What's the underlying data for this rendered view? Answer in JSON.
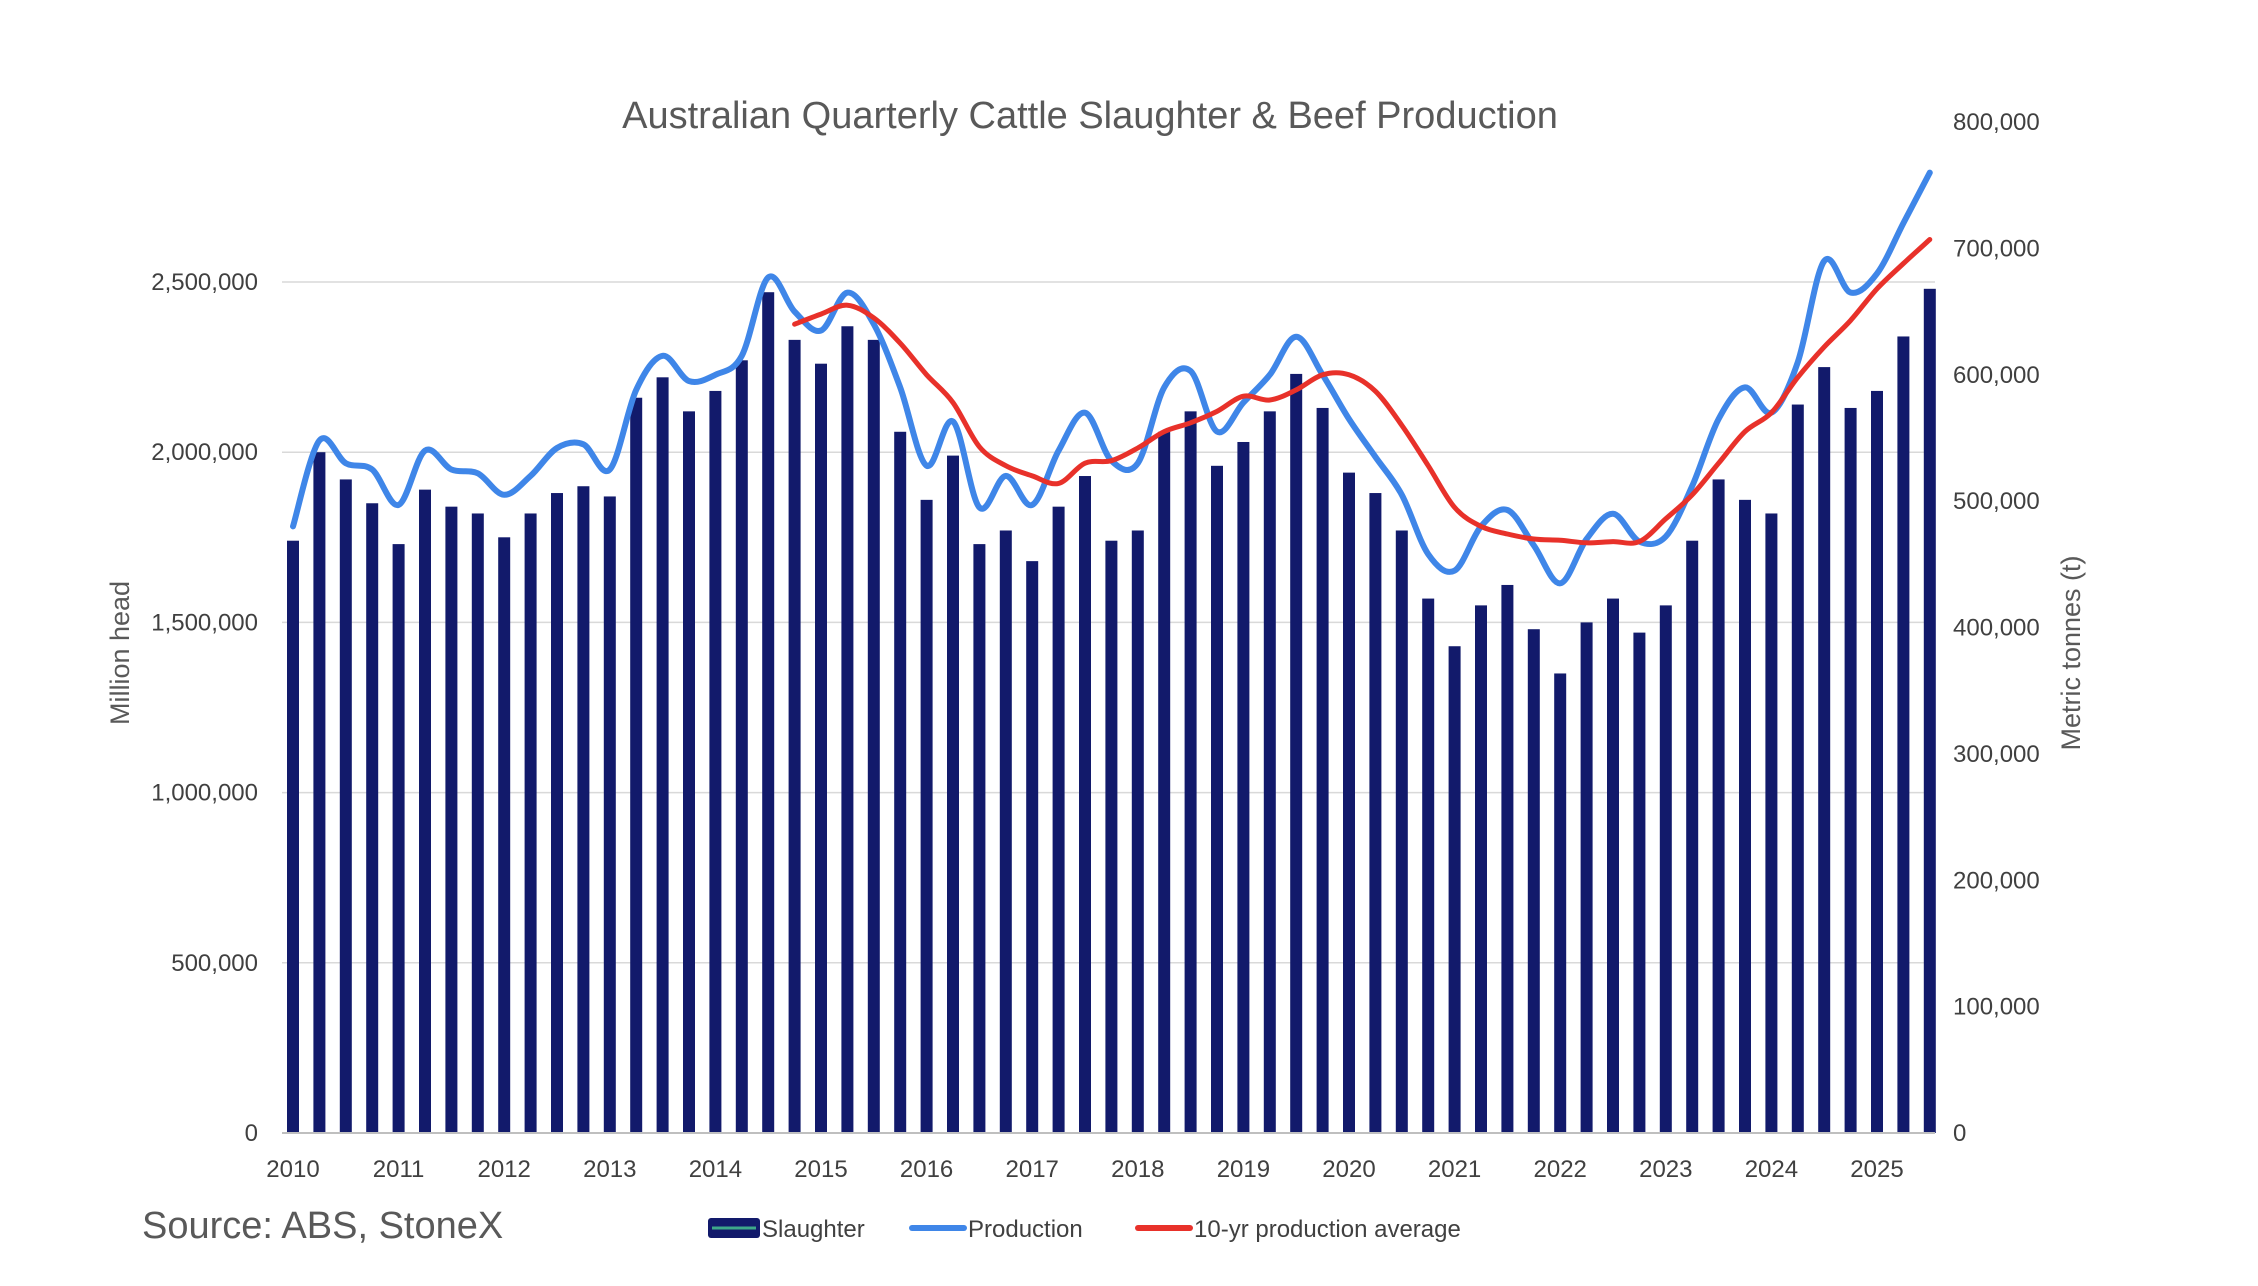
{
  "chart_data": {
    "type": "bar+line",
    "title": "Australian Quarterly Cattle Slaughter & Beef Production",
    "source": "Source: ABS, StoneX",
    "left_axis": {
      "label": "Million head",
      "min": 0,
      "max": 2500000,
      "ticks": [
        0,
        500000,
        1000000,
        1500000,
        2000000,
        2500000
      ],
      "tick_labels": [
        "0",
        "500,000",
        "1,000,000",
        "1,500,000",
        "2,000,000",
        "2,500,000"
      ]
    },
    "right_axis": {
      "label": "Metric tonnes (t)",
      "min": 0,
      "max": 800000,
      "ticks": [
        0,
        100000,
        200000,
        300000,
        400000,
        500000,
        600000,
        700000,
        800000
      ],
      "tick_labels": [
        "0",
        "100,000",
        "200,000",
        "300,000",
        "400,000",
        "500,000",
        "600,000",
        "700,000",
        "800,000"
      ]
    },
    "x_axis": {
      "years": [
        "2010",
        "2011",
        "2012",
        "2013",
        "2014",
        "2015",
        "2016",
        "2017",
        "2018",
        "2019",
        "2020",
        "2021",
        "2022",
        "2023",
        "2024",
        "2025"
      ],
      "quarters_per_year": 4
    },
    "legend": {
      "placement": "bottom",
      "entries": [
        "Slaughter",
        "Production",
        "10-yr production average"
      ]
    },
    "colors": {
      "slaughter": "#121a6b",
      "production": "#3f86e8",
      "average": "#e8312a",
      "grid": "#d9d9d9",
      "legend_slaughter_line": "#3da88a"
    },
    "series": [
      {
        "name": "Slaughter",
        "axis": "left",
        "kind": "bar",
        "values": [
          1740000,
          2000000,
          1920000,
          1850000,
          1730000,
          1890000,
          1840000,
          1820000,
          1750000,
          1820000,
          1880000,
          1900000,
          1870000,
          2160000,
          2220000,
          2120000,
          2180000,
          2270000,
          2470000,
          2330000,
          2260000,
          2370000,
          2330000,
          2060000,
          1860000,
          1990000,
          1730000,
          1770000,
          1680000,
          1840000,
          1930000,
          1740000,
          1770000,
          2060000,
          2120000,
          1960000,
          2030000,
          2120000,
          2230000,
          2130000,
          1940000,
          1880000,
          1770000,
          1570000,
          1430000,
          1550000,
          1610000,
          1480000,
          1350000,
          1500000,
          1570000,
          1470000,
          1550000,
          1740000,
          1920000,
          1860000,
          1820000,
          2140000,
          2250000,
          2130000,
          2180000,
          2340000,
          2480000
        ]
      },
      {
        "name": "Production",
        "axis": "right",
        "kind": "line",
        "values": [
          480000,
          548000,
          530000,
          525000,
          497000,
          540000,
          525000,
          522000,
          505000,
          520000,
          542000,
          545000,
          525000,
          588000,
          615000,
          595000,
          600000,
          615000,
          677000,
          650000,
          635000,
          665000,
          640000,
          590000,
          528000,
          563000,
          495000,
          520000,
          497000,
          540000,
          570000,
          532000,
          530000,
          590000,
          603000,
          555000,
          578000,
          600000,
          630000,
          600000,
          565000,
          535000,
          505000,
          458000,
          445000,
          480000,
          493000,
          465000,
          435000,
          470000,
          490000,
          468000,
          472000,
          512000,
          565000,
          590000,
          570000,
          610000,
          690000,
          665000,
          680000,
          720000,
          760000
        ]
      },
      {
        "name": "10-yr production average",
        "axis": "right",
        "kind": "line",
        "start_index": 19,
        "values": [
          640000,
          648000,
          655000,
          645000,
          625000,
          600000,
          578000,
          543000,
          528000,
          520000,
          514000,
          530000,
          532000,
          542000,
          555000,
          562000,
          571000,
          583000,
          580000,
          588000,
          600000,
          600000,
          587000,
          560000,
          528000,
          495000,
          480000,
          474000,
          470000,
          469000,
          467000,
          468000,
          468000,
          486000,
          505000,
          530000,
          555000,
          570000,
          598000,
          622000,
          643000,
          668000,
          688000,
          707000
        ]
      }
    ]
  }
}
